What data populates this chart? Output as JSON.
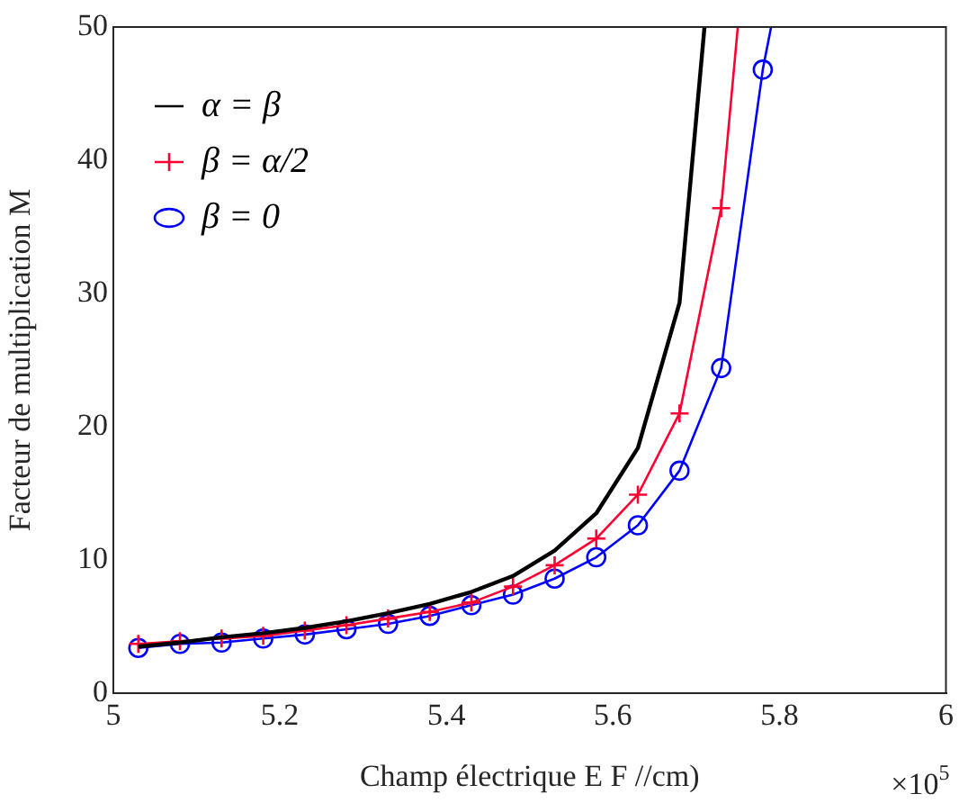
{
  "chart_data": {
    "type": "line",
    "xlabel": "Champ électrique E F //cm)",
    "ylabel": "Facteur de multiplication M",
    "xlim": [
      5,
      6
    ],
    "xticks": [
      5,
      5.2,
      5.4,
      5.6,
      5.8,
      6
    ],
    "ylim": [
      0,
      50
    ],
    "yticks": [
      0,
      10,
      20,
      30,
      40,
      50
    ],
    "grid": false,
    "legend": "top left",
    "annotations": [
      "×10$^{5}$"
    ],
    "series": [
      {
        "name": "α = β",
        "color": "#000000",
        "marker": "none",
        "x": [
          5.03,
          5.08,
          5.13,
          5.18,
          5.23,
          5.28,
          5.33,
          5.38,
          5.43,
          5.48,
          5.53,
          5.58,
          5.63,
          5.68,
          5.71
        ],
        "values": [
          3.5,
          3.8,
          4.2,
          4.5,
          4.9,
          5.4,
          6.0,
          6.7,
          7.6,
          8.8,
          10.7,
          13.5,
          18.4,
          29.3,
          50
        ]
      },
      {
        "name": "β = α/2",
        "color": "#ff0033",
        "marker": "cross",
        "x": [
          5.03,
          5.08,
          5.13,
          5.18,
          5.23,
          5.28,
          5.33,
          5.38,
          5.43,
          5.48,
          5.53,
          5.58,
          5.63,
          5.68,
          5.73,
          5.75
        ],
        "values": [
          3.7,
          3.9,
          4.1,
          4.3,
          4.7,
          5.1,
          5.6,
          6.1,
          6.8,
          8.0,
          9.6,
          11.6,
          14.9,
          21.0,
          36.4,
          50
        ]
      },
      {
        "name": "β = 0",
        "color": "#0000ff",
        "marker": "circle",
        "x": [
          5.03,
          5.08,
          5.13,
          5.18,
          5.23,
          5.28,
          5.33,
          5.38,
          5.43,
          5.48,
          5.53,
          5.58,
          5.63,
          5.68,
          5.73,
          5.78,
          5.79
        ],
        "values": [
          3.4,
          3.7,
          3.8,
          4.1,
          4.4,
          4.8,
          5.2,
          5.8,
          6.6,
          7.4,
          8.6,
          10.2,
          12.6,
          16.7,
          24.4,
          46.8,
          50
        ]
      }
    ]
  }
}
